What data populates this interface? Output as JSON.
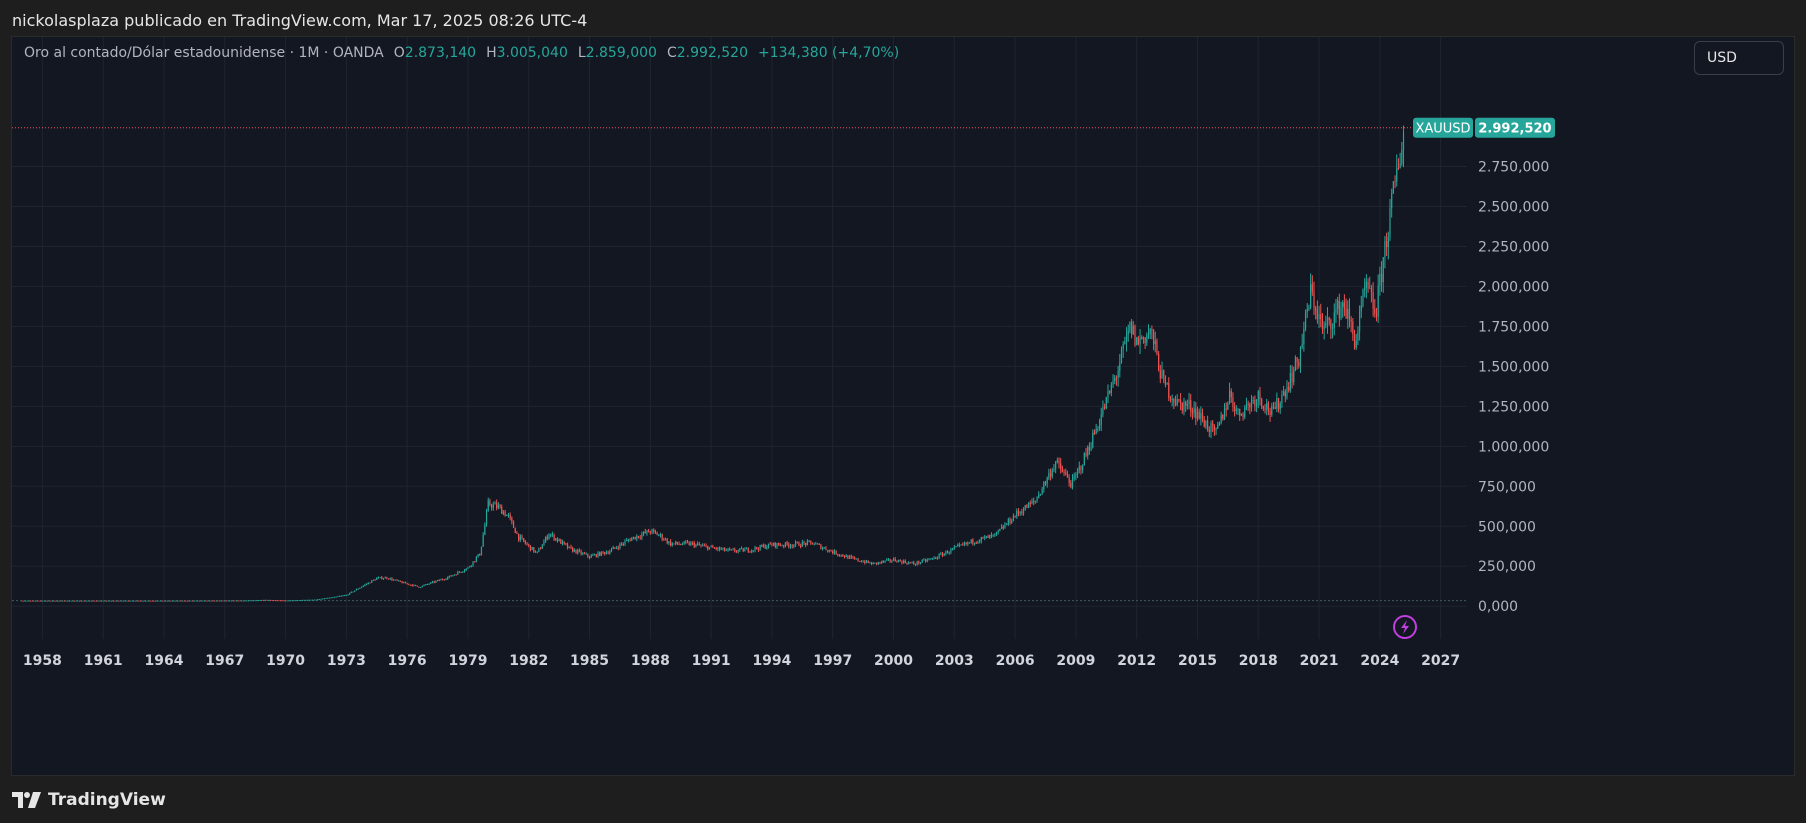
{
  "header": {
    "publish_line": "nickolasplaza publicado en TradingView.com, Mar 17, 2025 08:26 UTC-4"
  },
  "legend": {
    "symbol": "Oro al contado/Dólar estadounidense · 1M · OANDA",
    "open_label": "O",
    "open": "2.873,140",
    "high_label": "H",
    "high": "3.005,040",
    "low_label": "L",
    "low": "2.859,000",
    "close_label": "C",
    "close": "2.992,520",
    "change": "+134,380 (+4,70%)"
  },
  "currency_button": {
    "label": "USD"
  },
  "price_tag": {
    "symbol": "XAUUSD",
    "price": "2.992,520"
  },
  "footer": {
    "brand": "TradingView"
  },
  "colors": {
    "up": "#26a69a",
    "down": "#ef5350",
    "background": "#131722",
    "grid": "#1f2430",
    "price_line": "#f7525f",
    "event_icon": "#c13ee0"
  },
  "icons": {
    "event": "lightning-icon",
    "logo": "tradingview-logo-icon"
  },
  "chart_data": {
    "type": "candlestick",
    "symbol": "XAUUSD",
    "interval": "1M",
    "x_tick_labels": [
      "1958",
      "1961",
      "1964",
      "1967",
      "1970",
      "1973",
      "1976",
      "1979",
      "1982",
      "1985",
      "1988",
      "1991",
      "1994",
      "1997",
      "2000",
      "2003",
      "2006",
      "2009",
      "2012",
      "2015",
      "2018",
      "2021",
      "2024",
      "2027"
    ],
    "x_tick_years": [
      1958,
      1961,
      1964,
      1967,
      1970,
      1973,
      1976,
      1979,
      1982,
      1985,
      1988,
      1991,
      1994,
      1997,
      2000,
      2003,
      2006,
      2009,
      2012,
      2015,
      2018,
      2021,
      2024,
      2027
    ],
    "y_tick_labels": [
      "0,000",
      "250,000",
      "500,000",
      "750,000",
      "1.000,000",
      "1.250,000",
      "1.500,000",
      "1.750,000",
      "2.000,000",
      "2.250,000",
      "2.500,000",
      "2.750,000"
    ],
    "y_tick_values": [
      0,
      250,
      500,
      750,
      1000,
      1250,
      1500,
      1750,
      2000,
      2250,
      2500,
      2750
    ],
    "xlim": [
      1956.5,
      2028.3
    ],
    "ylim": [
      -205,
      3560
    ],
    "last_price": 2992.52,
    "grid": true,
    "price_path": [
      [
        1957.0,
        35
      ],
      [
        1960.0,
        35
      ],
      [
        1965.0,
        35
      ],
      [
        1968.0,
        36
      ],
      [
        1969.0,
        40
      ],
      [
        1970.0,
        36
      ],
      [
        1971.5,
        42
      ],
      [
        1972.5,
        60
      ],
      [
        1973.0,
        70
      ],
      [
        1973.5,
        105
      ],
      [
        1974.0,
        140
      ],
      [
        1974.5,
        175
      ],
      [
        1975.0,
        178
      ],
      [
        1975.7,
        150
      ],
      [
        1976.6,
        120
      ],
      [
        1977.0,
        138
      ],
      [
        1978.0,
        180
      ],
      [
        1979.0,
        240
      ],
      [
        1979.6,
        330
      ],
      [
        1980.0,
        640
      ],
      [
        1980.5,
        620
      ],
      [
        1981.0,
        560
      ],
      [
        1981.5,
        430
      ],
      [
        1982.4,
        330
      ],
      [
        1983.0,
        455
      ],
      [
        1984.0,
        360
      ],
      [
        1985.0,
        310
      ],
      [
        1986.0,
        345
      ],
      [
        1987.0,
        420
      ],
      [
        1988.0,
        470
      ],
      [
        1988.5,
        440
      ],
      [
        1989.0,
        390
      ],
      [
        1990.0,
        390
      ],
      [
        1991.0,
        365
      ],
      [
        1992.0,
        345
      ],
      [
        1993.0,
        355
      ],
      [
        1994.0,
        385
      ],
      [
        1995.0,
        385
      ],
      [
        1996.0,
        395
      ],
      [
        1997.0,
        340
      ],
      [
        1998.0,
        295
      ],
      [
        1999.0,
        265
      ],
      [
        2000.0,
        290
      ],
      [
        2001.0,
        265
      ],
      [
        2002.0,
        300
      ],
      [
        2003.0,
        360
      ],
      [
        2004.0,
        410
      ],
      [
        2005.0,
        440
      ],
      [
        2006.0,
        570
      ],
      [
        2007.0,
        660
      ],
      [
        2008.0,
        900
      ],
      [
        2008.8,
        760
      ],
      [
        2009.5,
        950
      ],
      [
        2010.0,
        1110
      ],
      [
        2011.0,
        1450
      ],
      [
        2011.7,
        1750
      ],
      [
        2012.0,
        1650
      ],
      [
        2012.7,
        1720
      ],
      [
        2013.3,
        1400
      ],
      [
        2014.0,
        1270
      ],
      [
        2014.7,
        1250
      ],
      [
        2015.9,
        1070
      ],
      [
        2016.6,
        1330
      ],
      [
        2017.0,
        1200
      ],
      [
        2018.0,
        1320
      ],
      [
        2018.7,
        1200
      ],
      [
        2019.5,
        1400
      ],
      [
        2020.0,
        1550
      ],
      [
        2020.6,
        1970
      ],
      [
        2021.2,
        1720
      ],
      [
        2022.2,
        1900
      ],
      [
        2022.8,
        1650
      ],
      [
        2023.3,
        2000
      ],
      [
        2023.8,
        1830
      ],
      [
        2024.2,
        2200
      ],
      [
        2024.8,
        2680
      ],
      [
        2025.2,
        2993
      ]
    ]
  }
}
